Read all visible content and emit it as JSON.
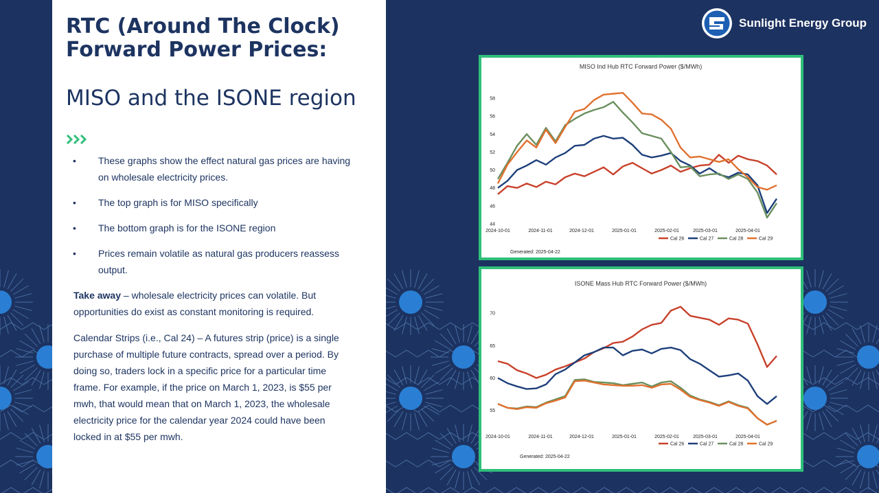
{
  "slide": {
    "title": "RTC (Around The Clock) Forward Power Prices:",
    "subtitle": "MISO and the ISONE region",
    "bullets": [
      "These graphs show the effect natural gas prices are having on wholesale electricity prices.",
      "The top graph is for MISO specifically",
      "The bottom graph is for the ISONE region",
      "Prices remain volatile as natural gas producers reassess output."
    ],
    "bullet_symbol": "•",
    "takeaway_label": "Take away",
    "takeaway_text": " – wholesale electricity prices can volatile. But opportunities do exist as constant monitoring is required.",
    "calendar_text": "Calendar Strips (i.e., Cal 24) – A futures strip (price) is a single purchase of multiple future contracts, spread over a period. By doing so, traders lock in a specific price for a particular time frame.  For example, if the price on March 1, 2023, is $55 per mwh, that would mean that on March 1, 2023, the wholesale electricity price for the calendar year 2024 could have been locked in at $55 per mwh."
  },
  "brand": {
    "name": "Sunlight Energy Group",
    "logo_icon": "sunlight-logo-icon"
  },
  "colors": {
    "navy": "#1c3260",
    "text": "#1d3461",
    "accent_green": "#2fbf7a",
    "cal26": "#c8412b",
    "cal27": "#1d3f7a",
    "cal28": "#6a8f5e",
    "cal29": "#e0712e"
  },
  "chart_data": [
    {
      "type": "line",
      "title": "MISO Ind Hub RTC Forward Power ($/MWh)",
      "x_ticks": [
        "2024-10-01",
        "2024-11-01",
        "2024-12-01",
        "2025-01-01",
        "2025-02-01",
        "2025-03-01",
        "2025-04-01"
      ],
      "x_tick_days": [
        0,
        31,
        61,
        92,
        123,
        151,
        182
      ],
      "x": [
        0,
        7,
        14,
        21,
        28,
        35,
        42,
        49,
        56,
        63,
        70,
        77,
        84,
        91,
        98,
        105,
        112,
        119,
        126,
        133,
        140,
        147,
        154,
        161,
        168,
        175,
        182,
        189,
        196,
        203
      ],
      "xlim": [
        0,
        210
      ],
      "y_ticks": [
        44,
        46,
        48,
        50,
        52,
        54,
        56,
        58
      ],
      "ylim": [
        44,
        59
      ],
      "series": [
        {
          "name": "Cal 26",
          "values": [
            47.3,
            48.2,
            48.0,
            48.5,
            48.1,
            48.7,
            48.4,
            49.2,
            49.6,
            49.3,
            49.8,
            50.3,
            49.5,
            50.4,
            50.8,
            50.2,
            49.6,
            50.0,
            50.5,
            49.8,
            50.2,
            50.5,
            50.6,
            51.7,
            50.8,
            51.6,
            51.2,
            51.0,
            50.5,
            49.5
          ]
        },
        {
          "name": "Cal 27",
          "values": [
            48.0,
            48.8,
            50.0,
            50.5,
            51.1,
            50.6,
            51.4,
            51.9,
            52.7,
            52.8,
            53.5,
            53.8,
            53.5,
            53.6,
            52.8,
            51.7,
            51.4,
            51.6,
            51.9,
            51.0,
            50.5,
            49.6,
            50.2,
            49.5,
            49.2,
            49.7,
            49.5,
            48.3,
            45.2,
            46.8
          ]
        },
        {
          "name": "Cal 28",
          "values": [
            49.0,
            50.8,
            52.7,
            54.0,
            52.8,
            54.7,
            53.2,
            55.0,
            55.7,
            56.3,
            56.7,
            57.0,
            57.6,
            56.4,
            55.3,
            54.1,
            53.8,
            53.5,
            52.0,
            50.3,
            50.4,
            49.3,
            49.5,
            49.6,
            49.0,
            49.5,
            49.0,
            47.5,
            44.7,
            46.3
          ]
        },
        {
          "name": "Cal 29",
          "values": [
            48.5,
            50.6,
            52.0,
            53.3,
            52.5,
            54.5,
            53.0,
            54.8,
            56.5,
            56.8,
            57.8,
            58.4,
            58.5,
            58.6,
            57.5,
            56.3,
            56.2,
            55.6,
            54.6,
            52.5,
            51.4,
            51.5,
            51.2,
            50.9,
            51.2,
            50.1,
            49.2,
            48.1,
            47.8,
            48.3
          ]
        }
      ],
      "legend": "bottom-right",
      "grid": false,
      "generated": "Generated: 2025-04-22"
    },
    {
      "type": "line",
      "title": "ISONE Mass Hub RTC Forward Power ($/MWh)",
      "x_ticks": [
        "2024-10-01",
        "2024-11-01",
        "2024-12-01",
        "2025-01-01",
        "2025-02-01",
        "2025-03-01",
        "2025-04-01"
      ],
      "x_tick_days": [
        0,
        31,
        61,
        92,
        123,
        151,
        182
      ],
      "x": [
        0,
        7,
        14,
        21,
        28,
        35,
        42,
        49,
        56,
        63,
        70,
        77,
        84,
        91,
        98,
        105,
        112,
        119,
        126,
        133,
        140,
        147,
        154,
        161,
        168,
        175,
        182,
        189,
        196,
        203
      ],
      "xlim": [
        0,
        210
      ],
      "y_ticks": [
        55,
        60,
        65,
        70
      ],
      "ylim": [
        52,
        71.5
      ],
      "series": [
        {
          "name": "Cal 26",
          "values": [
            62.6,
            62.2,
            61.2,
            60.7,
            60.0,
            60.5,
            61.3,
            61.8,
            62.4,
            63.0,
            64.0,
            64.6,
            65.4,
            65.6,
            66.4,
            67.5,
            68.2,
            68.5,
            70.4,
            71.0,
            69.6,
            69.3,
            69.0,
            68.2,
            69.2,
            69.0,
            68.4,
            65.2,
            61.7,
            63.4
          ]
        },
        {
          "name": "Cal 27",
          "values": [
            60.0,
            59.2,
            58.7,
            58.3,
            58.4,
            59.0,
            60.6,
            61.3,
            62.4,
            63.5,
            64.0,
            64.7,
            64.7,
            63.5,
            64.2,
            64.4,
            63.8,
            64.5,
            64.7,
            64.3,
            62.9,
            62.2,
            61.2,
            60.2,
            60.4,
            60.7,
            59.6,
            57.2,
            56.0,
            57.2
          ]
        },
        {
          "name": "Cal 28",
          "values": [
            56.0,
            55.4,
            55.3,
            55.6,
            55.5,
            56.2,
            56.7,
            57.2,
            59.7,
            59.8,
            59.4,
            59.3,
            59.2,
            58.9,
            59.1,
            59.3,
            58.7,
            59.3,
            59.5,
            58.5,
            57.3,
            56.7,
            56.3,
            55.8,
            56.4,
            55.8,
            55.4,
            53.8,
            52.8,
            53.4
          ]
        },
        {
          "name": "Cal 29",
          "values": [
            56.0,
            55.4,
            55.2,
            55.5,
            55.4,
            56.1,
            56.5,
            57.0,
            59.5,
            59.6,
            59.3,
            59.0,
            58.9,
            58.8,
            58.8,
            58.9,
            58.5,
            59.0,
            59.1,
            58.2,
            57.1,
            56.6,
            56.2,
            55.7,
            56.3,
            55.7,
            55.3,
            53.8,
            52.8,
            53.4
          ]
        }
      ],
      "legend": "bottom-right",
      "grid": false,
      "generated": "Generated: 2025-04-22"
    }
  ]
}
